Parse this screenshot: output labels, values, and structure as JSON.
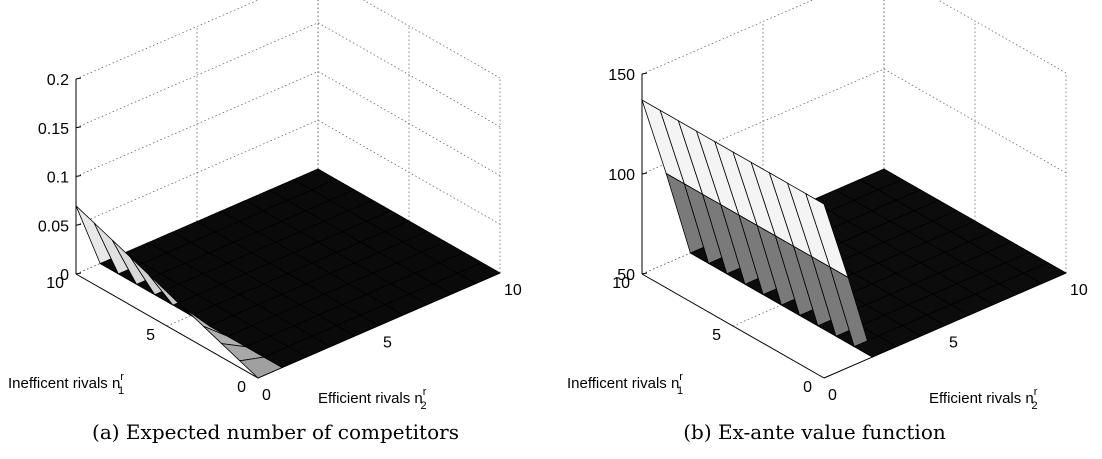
{
  "chart_data": [
    {
      "type": "surface",
      "caption": "(a) Expected number of competitors",
      "x_label": "Efficient rivals n",
      "x_label_sup": "r",
      "x_label_sub": "2",
      "y_label": "Inefficent rivals n",
      "y_label_sup": "r",
      "y_label_sub": "1",
      "x_ticks": [
        "0",
        "5",
        "10"
      ],
      "y_ticks": [
        "0",
        "5",
        "10"
      ],
      "z_ticks": [
        "0",
        "0.05",
        "0.1",
        "0.15",
        "0.2"
      ],
      "x_range": [
        0,
        10
      ],
      "y_range": [
        0,
        10
      ],
      "zlim": [
        0,
        0.2
      ],
      "grid": true,
      "surface": {
        "note": "z as function of efficient rivals n2 (columns 0..10) and inefficient rivals n1 (rows 0..10)",
        "z_at_n2_0": [
          0.0,
          0.007,
          0.014,
          0.021,
          0.028,
          0.035,
          0.042,
          0.049,
          0.056,
          0.063,
          0.07
        ],
        "z_at_n2_ge_1": 0.0
      }
    },
    {
      "type": "surface",
      "caption": "(b) Ex-ante value function",
      "x_label": "Efficient rivals n",
      "x_label_sup": "r",
      "x_label_sub": "2",
      "y_label": "Inefficent rivals n",
      "y_label_sup": "r",
      "y_label_sub": "1",
      "x_ticks": [
        "0",
        "5",
        "10"
      ],
      "y_ticks": [
        "0",
        "5",
        "10"
      ],
      "z_ticks": [
        "50",
        "100",
        "150"
      ],
      "x_range": [
        0,
        10
      ],
      "y_range": [
        0,
        10
      ],
      "zlim": [
        50,
        150
      ],
      "grid": true,
      "surface": {
        "note": "z as function of efficient rivals n2 and inefficient rivals n1",
        "z_at_n2_0": 137,
        "z_at_n2_1": 95,
        "z_floor": 50
      }
    }
  ]
}
